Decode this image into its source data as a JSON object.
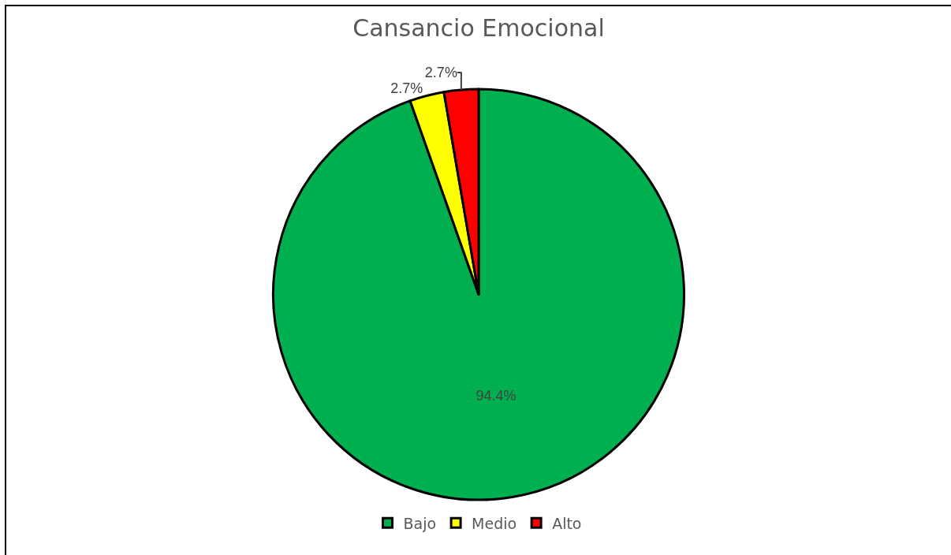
{
  "chart_data": {
    "type": "pie",
    "title": "Cansancio Emocional",
    "categories": [
      "Bajo",
      "Medio",
      "Alto"
    ],
    "values": [
      94.4,
      2.7,
      2.7
    ],
    "colors": [
      "#00b050",
      "#ffff00",
      "#ff0000"
    ],
    "value_labels": [
      "94.4%",
      "2.7%",
      "2.7%"
    ],
    "legend": "bottom"
  }
}
